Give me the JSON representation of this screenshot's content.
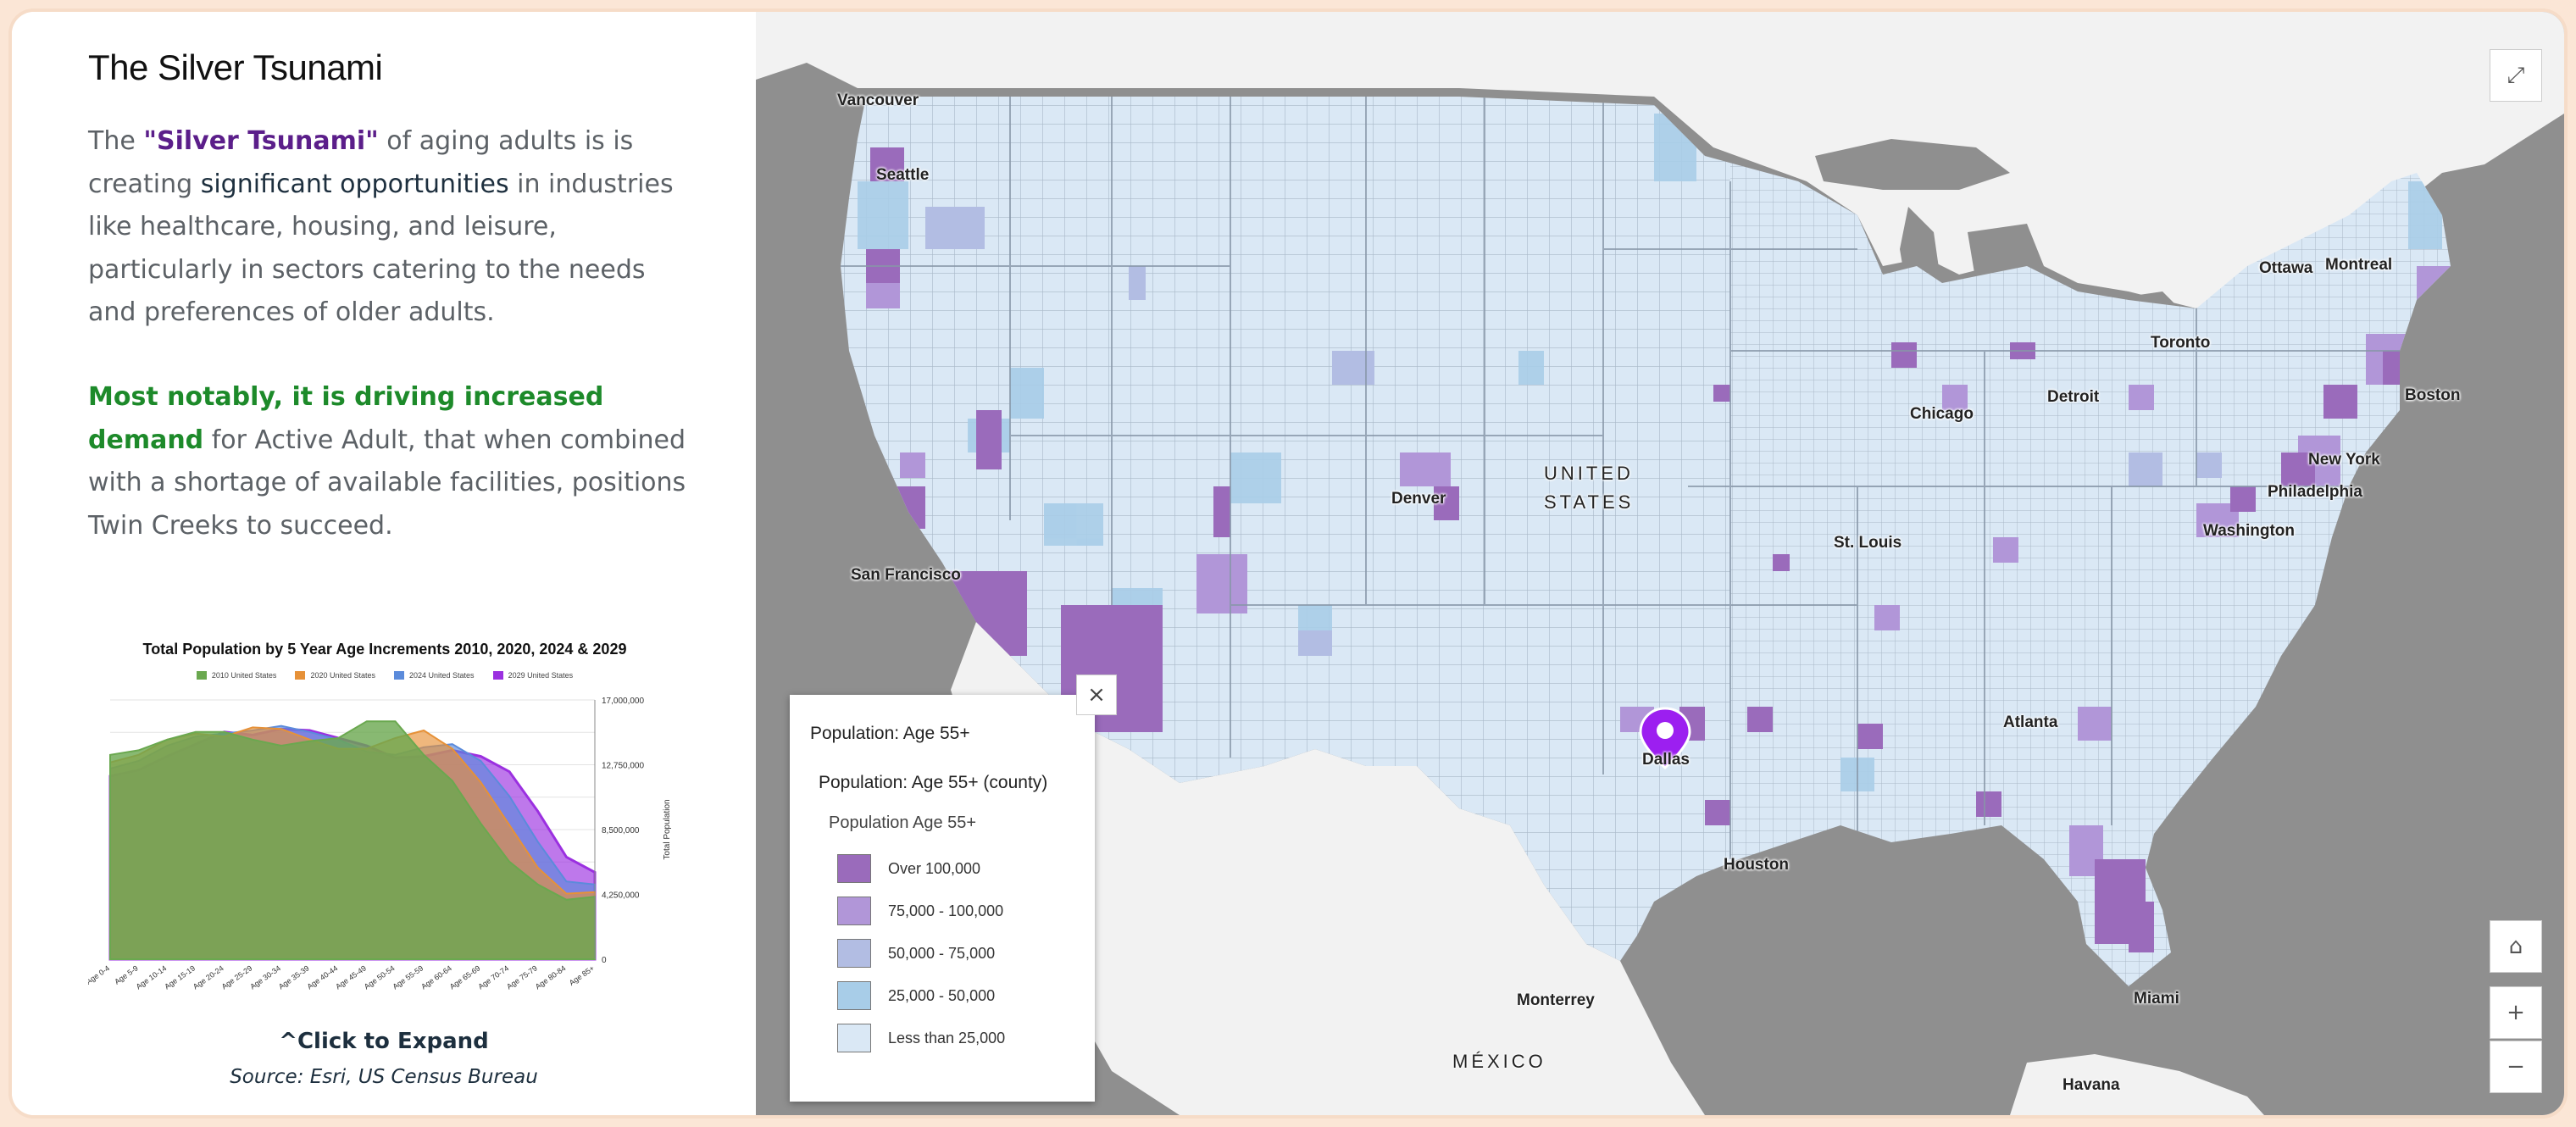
{
  "panel": {
    "title": "The Silver Tsunami",
    "para1": {
      "pre": "The ",
      "highlight": "\"Silver Tsunami\"",
      "mid": " of aging adults is is creating ",
      "strong": "significant opportunities",
      "post": " in industries like healthcare, housing, and leisure, particularly in sectors catering to the needs and preferences of older adults."
    },
    "para2": {
      "highlight": "Most notably, it is driving increased demand",
      "rest": " for Active Adult, that when combined with a shortage of available facilities, positions Twin Creeks to succeed."
    },
    "expand_label": "^Click to Expand",
    "source": "Source: Esri, US Census Bureau"
  },
  "chart_data": {
    "type": "area",
    "title": "Total Population by 5 Year Age Increments 2010, 2020, 2024 & 2029",
    "ylabel": "Total Population",
    "xlabel": "",
    "ylim": [
      0,
      17000000
    ],
    "yticks": [
      "17,000,000",
      "12,750,000",
      "8,500,000",
      "4,250,000",
      "0"
    ],
    "categories": [
      "Age 0-4",
      "Age 5-9",
      "Age 10-14",
      "Age 15-19",
      "Age 20-24",
      "Age 25-29",
      "Age 30-34",
      "Age 35-39",
      "Age 40-44",
      "Age 45-49",
      "Age 50-54",
      "Age 55-59",
      "Age 60-64",
      "Age 65-69",
      "Age 70-74",
      "Age 75-79",
      "Age 80-84",
      "Age 85+"
    ],
    "series": [
      {
        "name": "2010 United States",
        "color": "#6aa84f",
        "values": [
          13400000,
          13700000,
          14400000,
          14900000,
          14900000,
          14400000,
          14000000,
          14300000,
          14500000,
          15600000,
          15600000,
          13400000,
          11700000,
          8900000,
          6400000,
          4900000,
          3900000,
          4100000
        ]
      },
      {
        "name": "2020 United States",
        "color": "#e69138",
        "values": [
          12900000,
          13400000,
          14400000,
          14800000,
          14600000,
          15200000,
          15100000,
          14400000,
          13800000,
          13800000,
          14500000,
          15000000,
          13800000,
          11600000,
          8800000,
          6000000,
          4300000,
          4400000
        ]
      },
      {
        "name": "2024 United States",
        "color": "#5b8bdb",
        "values": [
          12500000,
          13000000,
          14000000,
          14600000,
          14800000,
          15000000,
          15300000,
          14900000,
          14400000,
          13600000,
          13400000,
          13900000,
          14100000,
          13000000,
          10700000,
          7700000,
          5100000,
          4900000
        ]
      },
      {
        "name": "2029 United States",
        "color": "#9b30e0",
        "values": [
          12000000,
          12400000,
          13300000,
          14100000,
          14900000,
          14700000,
          15100000,
          15000000,
          14500000,
          14000000,
          13200000,
          13300000,
          13700000,
          13300000,
          12300000,
          9700000,
          6700000,
          5700000
        ]
      }
    ]
  },
  "map": {
    "labels": {
      "vancouver": "Vancouver",
      "seattle": "Seattle",
      "san_francisco": "San Francisco",
      "denver": "Denver",
      "united": "UNITED",
      "states": "STATES",
      "chicago": "Chicago",
      "detroit": "Detroit",
      "toronto": "Toronto",
      "ottawa": "Ottawa",
      "montreal": "Montreal",
      "boston": "Boston",
      "new_york": "New York",
      "philadelphia": "Philadelphia",
      "washington": "Washington",
      "st_louis": "St. Louis",
      "atlanta": "Atlanta",
      "dallas": "Dallas",
      "houston": "Houston",
      "miami": "Miami",
      "monterrey": "Monterrey",
      "mexico": "MÉXICO",
      "havana": "Havana"
    },
    "colors": {
      "class1": "#dae8f5",
      "class2": "#a8cde8",
      "class3": "#b2bde3",
      "class4": "#b196d8",
      "class5": "#9a6bbb",
      "pin": "#9c1ff0"
    },
    "controls": {
      "expand_icon": "⤢",
      "home_icon": "⌂",
      "zoom_in": "+",
      "zoom_out": "−"
    }
  },
  "legend": {
    "close": "×",
    "title": "Population: Age 55+",
    "layer": "Population: Age 55+ (county)",
    "field": "Population Age 55+",
    "classes": [
      {
        "label": "Over 100,000",
        "color": "#9a6bbb"
      },
      {
        "label": "75,000 - 100,000",
        "color": "#b196d8"
      },
      {
        "label": "50,000 - 75,000",
        "color": "#b2bde3"
      },
      {
        "label": "25,000 - 50,000",
        "color": "#a8cde8"
      },
      {
        "label": "Less than 25,000",
        "color": "#dae8f5"
      }
    ]
  }
}
